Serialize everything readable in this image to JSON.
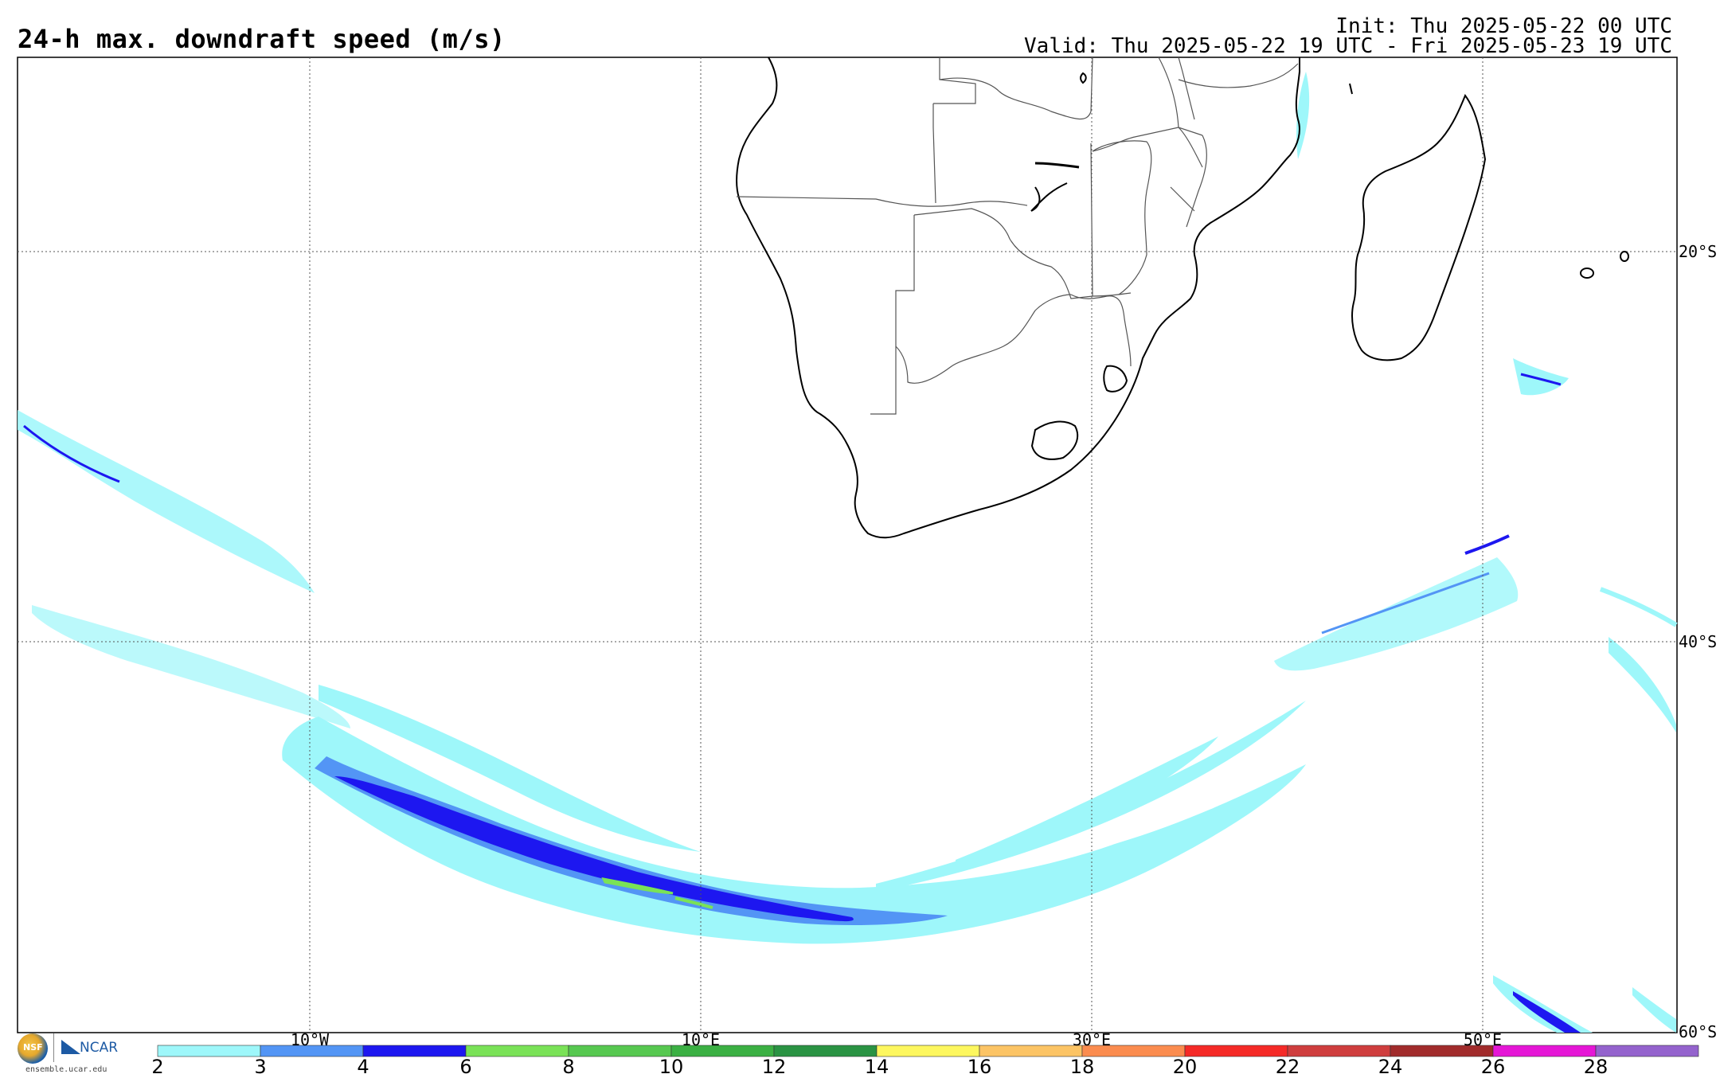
{
  "header": {
    "title": "24-h max. downdraft speed (m/s)",
    "init": "Init: Thu 2025-05-22 00 UTC",
    "valid": "Valid: Thu 2025-05-22 19 UTC - Fri 2025-05-23 19 UTC"
  },
  "map": {
    "region": "Southern Africa and South Atlantic / Indian Ocean",
    "lat_labels": [
      "20°S",
      "40°S",
      "60°S"
    ],
    "lon_labels": [
      "10°W",
      "10°E",
      "30°E",
      "50°E"
    ],
    "ocean_color": "#ffffff",
    "coast_color": "#000000",
    "border_color": "#555555",
    "grid_style": "dotted"
  },
  "colorbar": {
    "ticks": [
      "2",
      "3",
      "4",
      "6",
      "8",
      "10",
      "12",
      "14",
      "16",
      "18",
      "20",
      "22",
      "24",
      "26",
      "28"
    ],
    "colors": [
      "#9ef7fa",
      "#5395f5",
      "#1d17f0",
      "#7ae257",
      "#57c850",
      "#3bb043",
      "#2a9343",
      "#fdf75f",
      "#fcc465",
      "#fb8c4f",
      "#f52a27",
      "#cf3e3e",
      "#a12b2b",
      "#e516d6",
      "#9463cd"
    ]
  },
  "logos": {
    "nsf_text": "NSF",
    "ncar_text": "NCAR",
    "site": "ensemble.ucar.edu"
  }
}
